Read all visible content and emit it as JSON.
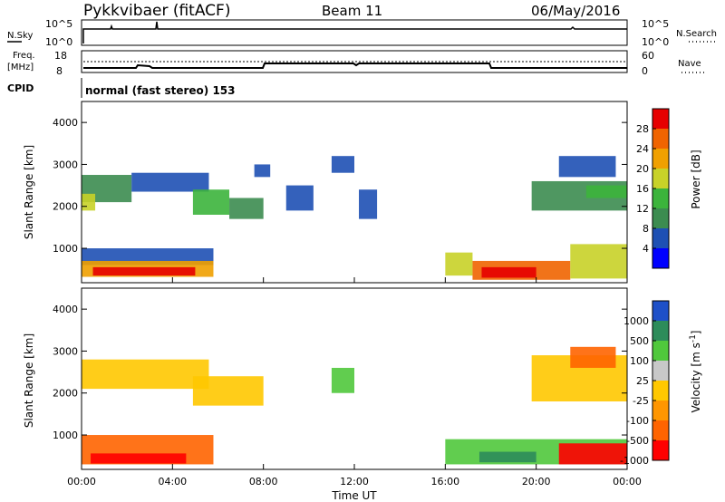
{
  "header": {
    "station": "Pykkvibaer (fitACF)",
    "beam": "Beam 11",
    "date": "06/May/2016"
  },
  "top_panels": {
    "nsky_label": "N.Sky",
    "nsky_ticks": [
      "10^5",
      "10^0"
    ],
    "nsearch_label": "N.Search",
    "nsearch_ticks": [
      "10^5",
      "10^0"
    ],
    "freq_label": "Freq.",
    "freq_unit": "[MHz]",
    "freq_ticks": [
      "18",
      "8"
    ],
    "nave_label": "Nave",
    "nave_ticks": [
      "60",
      "0"
    ],
    "cpid_label": "CPID",
    "cpid_text": "normal (fast stereo) 153"
  },
  "colors": {
    "power": [
      "#0000ff",
      "#1e50b4",
      "#3c8c50",
      "#3cb43c",
      "#c8d228",
      "#f0a000",
      "#f06400",
      "#e60000"
    ],
    "velocity": [
      "#ff0000",
      "#ff6400",
      "#ff9600",
      "#ffc800",
      "#c8c8c8",
      "#50c83c",
      "#2d8c5a",
      "#1e50c8"
    ]
  },
  "chart_data": [
    {
      "type": "heatmap",
      "name": "power",
      "ylabel": "Slant Range [km]",
      "y_ticks": [
        "1000",
        "2000",
        "3000",
        "4000"
      ],
      "ylim": [
        180,
        4500
      ],
      "colorbar_label": "Power [dB]",
      "colorbar_ticks": [
        "4",
        "8",
        "12",
        "16",
        "20",
        "24",
        "28"
      ],
      "colorbar_range": [
        0,
        32
      ],
      "regions": [
        {
          "x": [
            0.0,
            2.2
          ],
          "y": [
            2100,
            2750
          ],
          "value": 8
        },
        {
          "x": [
            0.0,
            0.6
          ],
          "y": [
            1900,
            2300
          ],
          "value": 18
        },
        {
          "x": [
            2.2,
            5.6
          ],
          "y": [
            2350,
            2800
          ],
          "value": 6
        },
        {
          "x": [
            4.9,
            6.5
          ],
          "y": [
            1800,
            2400
          ],
          "value": 14
        },
        {
          "x": [
            6.5,
            8.0
          ],
          "y": [
            1700,
            2200
          ],
          "value": 9
        },
        {
          "x": [
            7.6,
            8.3
          ],
          "y": [
            2700,
            3000
          ],
          "value": 5
        },
        {
          "x": [
            0.0,
            5.8
          ],
          "y": [
            600,
            1000
          ],
          "value": 6
        },
        {
          "x": [
            0.0,
            5.8
          ],
          "y": [
            320,
            700
          ],
          "value": 22
        },
        {
          "x": [
            0.5,
            5.0
          ],
          "y": [
            350,
            550
          ],
          "value": 28
        },
        {
          "x": [
            9.0,
            10.2
          ],
          "y": [
            1900,
            2500
          ],
          "value": 7
        },
        {
          "x": [
            11.0,
            12.0
          ],
          "y": [
            2800,
            3200
          ],
          "value": 5
        },
        {
          "x": [
            12.2,
            13.0
          ],
          "y": [
            1700,
            2400
          ],
          "value": 6
        },
        {
          "x": [
            16.0,
            17.2
          ],
          "y": [
            350,
            900
          ],
          "value": 18
        },
        {
          "x": [
            17.2,
            21.5
          ],
          "y": [
            250,
            700
          ],
          "value": 24
        },
        {
          "x": [
            17.6,
            20.0
          ],
          "y": [
            300,
            550
          ],
          "value": 29
        },
        {
          "x": [
            21.5,
            24.0
          ],
          "y": [
            280,
            1100
          ],
          "value": 18
        },
        {
          "x": [
            19.8,
            24.0
          ],
          "y": [
            1900,
            2600
          ],
          "value": 9
        },
        {
          "x": [
            22.2,
            24.0
          ],
          "y": [
            2200,
            2500
          ],
          "value": 15
        },
        {
          "x": [
            21.0,
            23.5
          ],
          "y": [
            2700,
            3200
          ],
          "value": 4
        }
      ]
    },
    {
      "type": "heatmap",
      "name": "velocity",
      "ylabel": "Slant Range [km]",
      "y_ticks": [
        "1000",
        "2000",
        "3000",
        "4000"
      ],
      "ylim": [
        180,
        4500
      ],
      "xlabel": "Time UT",
      "x_ticks": [
        "00:00",
        "04:00",
        "08:00",
        "12:00",
        "16:00",
        "20:00",
        "00:00"
      ],
      "xlim": [
        0,
        24
      ],
      "colorbar_label": "Velocity [m s^-1]",
      "colorbar_ticks": [
        "-1000",
        "-500",
        "-100",
        "-25",
        "25",
        "100",
        "500",
        "1000"
      ],
      "regions": [
        {
          "x": [
            0.0,
            5.6
          ],
          "y": [
            2100,
            2800
          ],
          "value": 0
        },
        {
          "x": [
            4.9,
            8.0
          ],
          "y": [
            1700,
            2400
          ],
          "value": 0
        },
        {
          "x": [
            0.0,
            5.8
          ],
          "y": [
            300,
            1000
          ],
          "value": -200
        },
        {
          "x": [
            0.4,
            4.6
          ],
          "y": [
            320,
            560
          ],
          "value": -800
        },
        {
          "x": [
            11.0,
            12.0
          ],
          "y": [
            2000,
            2600
          ],
          "value": 300
        },
        {
          "x": [
            16.0,
            24.0
          ],
          "y": [
            300,
            900
          ],
          "value": 150
        },
        {
          "x": [
            17.5,
            20.0
          ],
          "y": [
            350,
            600
          ],
          "value": 900
        },
        {
          "x": [
            21.0,
            24.0
          ],
          "y": [
            300,
            800
          ],
          "value": -600
        },
        {
          "x": [
            19.8,
            24.0
          ],
          "y": [
            1800,
            2900
          ],
          "value": 0
        },
        {
          "x": [
            21.5,
            23.5
          ],
          "y": [
            2600,
            3100
          ],
          "value": -100
        }
      ]
    }
  ]
}
